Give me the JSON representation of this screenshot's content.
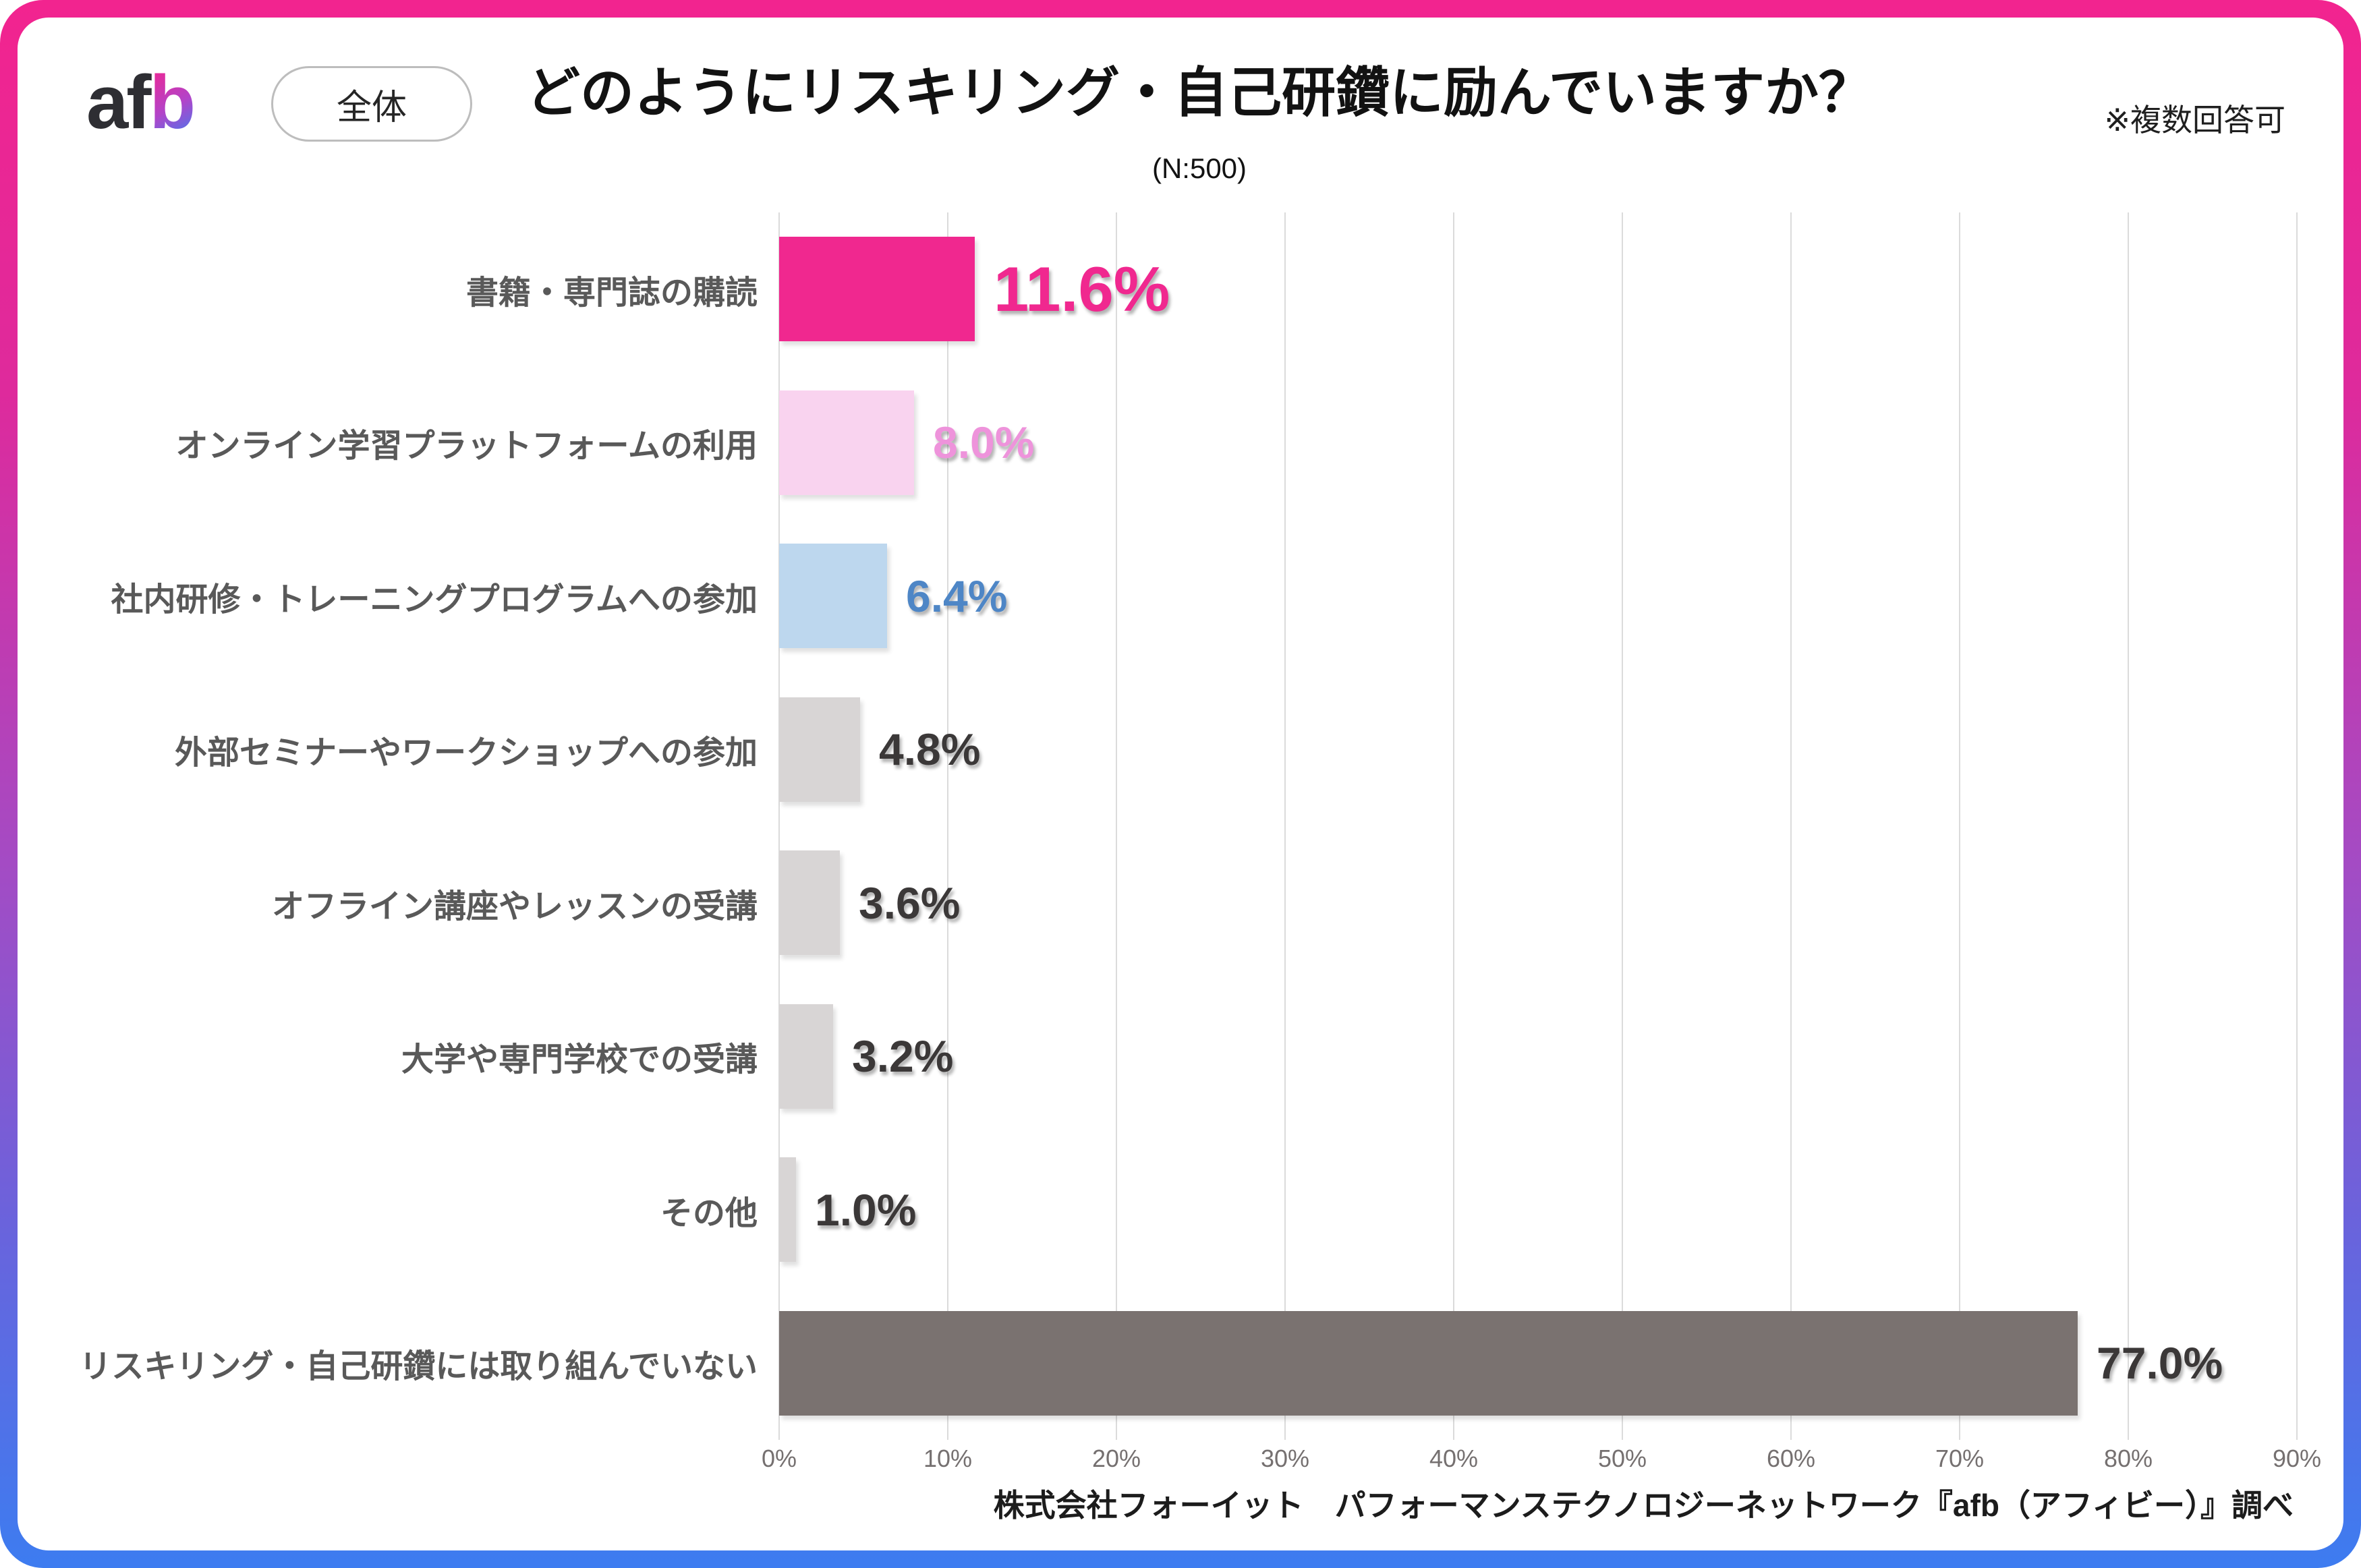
{
  "header": {
    "logo_af": "af",
    "logo_b": "b",
    "badge": "全体",
    "title": "どのようにリスキリング・自己研鑽に励んでいますか？",
    "subtitle": "(N:500)",
    "note": "※複数回答可"
  },
  "footer": {
    "source": "株式会社フォーイット　パフォーマンステクノロジーネットワーク『afb（アフィビー）』調べ"
  },
  "chart_data": {
    "type": "bar",
    "orientation": "horizontal",
    "title": "どのようにリスキリング・自己研鑽に励んでいますか？",
    "sample_note": "(N:500)",
    "multi_answer_note": "※複数回答可",
    "xlim": [
      0,
      90
    ],
    "x_ticks": [
      "0%",
      "10%",
      "20%",
      "30%",
      "40%",
      "50%",
      "60%",
      "70%",
      "80%",
      "90%"
    ],
    "grid": true,
    "legend": "none",
    "bars": [
      {
        "label": "書籍・専門誌の購読",
        "value": 11.6,
        "display": "11.6%",
        "bar_color": "#F0288F",
        "value_color": "#F0288F",
        "emphasized": true
      },
      {
        "label": "オンライン学習プラットフォームの利用",
        "value": 8.0,
        "display": "8.0%",
        "bar_color": "#F9D3EF",
        "value_color": "#EE93DB",
        "emphasized": false
      },
      {
        "label": "社内研修・トレーニングプログラムへの参加",
        "value": 6.4,
        "display": "6.4%",
        "bar_color": "#BDD7EE",
        "value_color": "#4E86C6",
        "emphasized": false
      },
      {
        "label": "外部セミナーやワークショップへの参加",
        "value": 4.8,
        "display": "4.8%",
        "bar_color": "#D8D5D5",
        "value_color": "#3B3838",
        "emphasized": false
      },
      {
        "label": "オフライン講座やレッスンの受講",
        "value": 3.6,
        "display": "3.6%",
        "bar_color": "#D8D5D5",
        "value_color": "#3B3838",
        "emphasized": false
      },
      {
        "label": "大学や専門学校での受講",
        "value": 3.2,
        "display": "3.2%",
        "bar_color": "#D8D5D5",
        "value_color": "#3B3838",
        "emphasized": false
      },
      {
        "label": "その他",
        "value": 1.0,
        "display": "1.0%",
        "bar_color": "#D8D5D5",
        "value_color": "#3B3838",
        "emphasized": false
      },
      {
        "label": "リスキリング・自己研鑽には取り組んでいない",
        "value": 77.0,
        "display": "77.0%",
        "bar_color": "#7A7270",
        "value_color": "#3B3838",
        "emphasized": false
      }
    ],
    "colors": {
      "grid": "#DBDBDB",
      "axis_text": "#757070",
      "label_text": "#595959",
      "frame_gradient_top": "#F2248F",
      "frame_gradient_mid": "#A44BC4",
      "frame_gradient_bottom": "#3D7CF0"
    }
  }
}
